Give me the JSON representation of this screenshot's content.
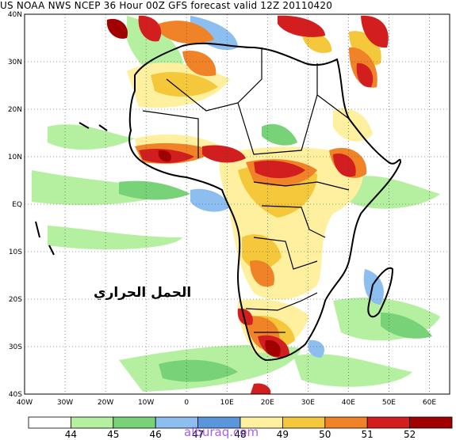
{
  "title": "US NOAA NWS NCEP 36 Hour 00Z GFS forecast valid 12Z 20110420",
  "overlay_text": "الحمل الحراري",
  "watermark": "alburaq.com",
  "lat_labels": [
    "40N",
    "30N",
    "20N",
    "10N",
    "EQ",
    "10S",
    "20S",
    "30S",
    "40S"
  ],
  "lon_labels": [
    "40W",
    "30W",
    "20W",
    "10W",
    "0",
    "10E",
    "20E",
    "30E",
    "40E",
    "50E",
    "60E"
  ],
  "legend": {
    "labels": [
      "44",
      "45",
      "46",
      "47",
      "48",
      "49",
      "50",
      "51",
      "52"
    ],
    "colors": [
      "#ffffff",
      "#b4f0a0",
      "#78d278",
      "#8cbef0",
      "#5a96dc",
      "#fff0a0",
      "#f5c83c",
      "#f08228",
      "#d21e1e",
      "#a00000"
    ]
  },
  "chart_data": {
    "type": "heatmap",
    "region": {
      "lon_range": [
        -40,
        65
      ],
      "lat_range": [
        -40,
        40
      ]
    },
    "variable": "GFS forecast field (legend 44–52)",
    "legend_thresholds": [
      44,
      45,
      46,
      47,
      48,
      49,
      50,
      51,
      52
    ]
  }
}
